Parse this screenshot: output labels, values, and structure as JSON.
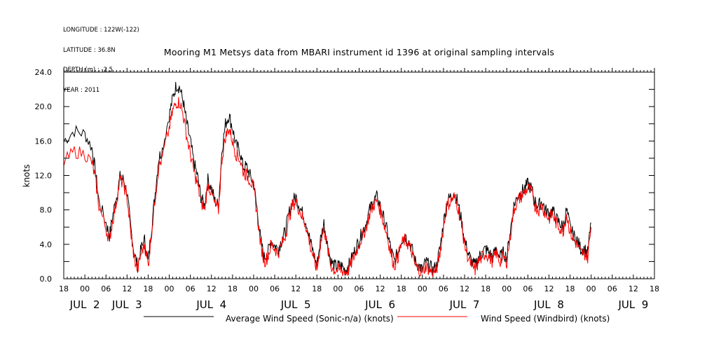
{
  "header": {
    "longitude": "LONGITUDE : 122W(-122)",
    "latitude": "LATITUDE : 36.8N",
    "depth": "DEPTH (m) : -2.5",
    "year": "YEAR : 2011"
  },
  "chart_data": {
    "type": "line",
    "title": "Mooring M1 Metsys data from MBARI instrument id 1396 at original sampling intervals",
    "ylabel": "knots",
    "xlabel": "",
    "ylim": [
      0,
      24
    ],
    "y_ticks": [
      "0.0",
      "4.0",
      "8.0",
      "12.0",
      "16.0",
      "20.0",
      "24.0"
    ],
    "x_range_hours": [
      0,
      168
    ],
    "x_tick_labels": [
      "18",
      "00",
      "06",
      "12",
      "18",
      "00",
      "06",
      "12",
      "18",
      "00",
      "06",
      "12",
      "18",
      "00",
      "06",
      "12",
      "18",
      "00",
      "06",
      "12",
      "18",
      "00",
      "06",
      "12",
      "18",
      "00",
      "06",
      "12",
      "18"
    ],
    "day_labels": [
      {
        "label": "JUL  2",
        "hour": 6
      },
      {
        "label": "JUL  3",
        "hour": 18
      },
      {
        "label": "JUL  4",
        "hour": 42
      },
      {
        "label": "JUL  5",
        "hour": 66
      },
      {
        "label": "JUL  6",
        "hour": 90
      },
      {
        "label": "JUL  7",
        "hour": 114
      },
      {
        "label": "JUL  8",
        "hour": 138
      },
      {
        "label": "JUL  9",
        "hour": 162
      }
    ],
    "grid": false,
    "series": [
      {
        "name": "Average Wind Speed (Sonic-n/a) (knots)",
        "color": "#000000",
        "points": [
          [
            0,
            16.0
          ],
          [
            3,
            17.2
          ],
          [
            6,
            16.8
          ],
          [
            8,
            15.2
          ],
          [
            9,
            12.5
          ],
          [
            10,
            9.0
          ],
          [
            12,
            6.5
          ],
          [
            13,
            5.0
          ],
          [
            14,
            7.5
          ],
          [
            15,
            9.5
          ],
          [
            16,
            11.8
          ],
          [
            17,
            11.5
          ],
          [
            18,
            10.0
          ],
          [
            19,
            6.0
          ],
          [
            20,
            3.0
          ],
          [
            21,
            1.5
          ],
          [
            22,
            3.5
          ],
          [
            23,
            4.5
          ],
          [
            24,
            2.0
          ],
          [
            25,
            6.0
          ],
          [
            26,
            10.0
          ],
          [
            27,
            14.0
          ],
          [
            28,
            15.0
          ],
          [
            30,
            19.0
          ],
          [
            31,
            21.0
          ],
          [
            32,
            22.5
          ],
          [
            33,
            22.2
          ],
          [
            34,
            20.5
          ],
          [
            35,
            18.0
          ],
          [
            36,
            16.0
          ],
          [
            37,
            13.5
          ],
          [
            38,
            12.0
          ],
          [
            39,
            9.5
          ],
          [
            40,
            8.5
          ],
          [
            41,
            11.5
          ],
          [
            42,
            10.5
          ],
          [
            43,
            9.0
          ],
          [
            44,
            8.5
          ],
          [
            45,
            15.0
          ],
          [
            46,
            18.0
          ],
          [
            47,
            19.0
          ],
          [
            48,
            17.5
          ],
          [
            49,
            15.5
          ],
          [
            50,
            15.0
          ],
          [
            51,
            13.0
          ],
          [
            52,
            13.0
          ],
          [
            53,
            12.0
          ],
          [
            54,
            11.0
          ],
          [
            55,
            8.0
          ],
          [
            56,
            4.5
          ],
          [
            57,
            2.5
          ],
          [
            58,
            3.0
          ],
          [
            59,
            4.5
          ],
          [
            60,
            3.8
          ],
          [
            61,
            3.5
          ],
          [
            62,
            4.5
          ],
          [
            63,
            5.5
          ],
          [
            64,
            7.5
          ],
          [
            65,
            9.0
          ],
          [
            66,
            9.5
          ],
          [
            67,
            8.5
          ],
          [
            68,
            7.5
          ],
          [
            69,
            6.5
          ],
          [
            70,
            4.5
          ],
          [
            71,
            3.0
          ],
          [
            72,
            1.5
          ],
          [
            73,
            4.5
          ],
          [
            74,
            6.5
          ],
          [
            75,
            4.0
          ],
          [
            76,
            2.0
          ],
          [
            77,
            1.5
          ],
          [
            78,
            1.5
          ],
          [
            79,
            1.5
          ],
          [
            80,
            1.0
          ],
          [
            81,
            1.5
          ],
          [
            82,
            2.5
          ],
          [
            83,
            3.5
          ],
          [
            84,
            4.5
          ],
          [
            85,
            5.5
          ],
          [
            86,
            6.5
          ],
          [
            87,
            8.0
          ],
          [
            88,
            9.0
          ],
          [
            89,
            9.5
          ],
          [
            90,
            8.5
          ],
          [
            91,
            7.0
          ],
          [
            92,
            5.5
          ],
          [
            93,
            3.5
          ],
          [
            94,
            2.0
          ],
          [
            95,
            3.0
          ],
          [
            96,
            4.5
          ],
          [
            97,
            5.0
          ],
          [
            98,
            4.5
          ],
          [
            99,
            3.5
          ],
          [
            100,
            2.0
          ],
          [
            101,
            1.5
          ],
          [
            102,
            1.0
          ],
          [
            103,
            2.0
          ],
          [
            104,
            1.5
          ],
          [
            105,
            1.0
          ],
          [
            106,
            1.5
          ],
          [
            107,
            3.5
          ],
          [
            108,
            6.5
          ],
          [
            109,
            9.0
          ],
          [
            110,
            9.5
          ],
          [
            111,
            10.0
          ],
          [
            112,
            9.0
          ],
          [
            113,
            7.0
          ],
          [
            114,
            4.5
          ],
          [
            115,
            3.0
          ],
          [
            116,
            2.0
          ],
          [
            117,
            1.5
          ],
          [
            118,
            2.5
          ],
          [
            119,
            3.0
          ],
          [
            120,
            3.5
          ],
          [
            121,
            3.0
          ],
          [
            122,
            2.5
          ],
          [
            123,
            3.5
          ],
          [
            124,
            2.5
          ],
          [
            125,
            3.0
          ],
          [
            126,
            2.5
          ],
          [
            127,
            5.5
          ],
          [
            128,
            8.5
          ],
          [
            129,
            9.5
          ],
          [
            130,
            10.0
          ],
          [
            131,
            10.5
          ],
          [
            132,
            11.0
          ],
          [
            133,
            10.5
          ],
          [
            134,
            9.0
          ],
          [
            135,
            8.5
          ],
          [
            136,
            9.0
          ],
          [
            137,
            8.0
          ],
          [
            138,
            7.5
          ],
          [
            139,
            8.0
          ],
          [
            140,
            7.0
          ],
          [
            141,
            6.5
          ],
          [
            142,
            6.0
          ],
          [
            143,
            8.0
          ],
          [
            144,
            6.0
          ],
          [
            145,
            5.0
          ],
          [
            146,
            4.5
          ],
          [
            147,
            3.5
          ],
          [
            148,
            3.5
          ],
          [
            149,
            3.0
          ],
          [
            150,
            6.5
          ]
        ]
      },
      {
        "name": "Wind Speed (Windbird) (knots)",
        "color": "#ff0000",
        "points": [
          [
            0,
            13.5
          ],
          [
            3,
            14.8
          ],
          [
            6,
            14.5
          ],
          [
            8,
            13.5
          ],
          [
            9,
            11.5
          ],
          [
            10,
            8.5
          ],
          [
            12,
            5.8
          ],
          [
            13,
            4.5
          ],
          [
            14,
            7.0
          ],
          [
            15,
            9.0
          ],
          [
            16,
            11.5
          ],
          [
            17,
            11.0
          ],
          [
            18,
            9.5
          ],
          [
            19,
            5.5
          ],
          [
            20,
            2.5
          ],
          [
            21,
            1.0
          ],
          [
            22,
            3.0
          ],
          [
            23,
            4.0
          ],
          [
            24,
            1.5
          ],
          [
            25,
            5.5
          ],
          [
            26,
            9.5
          ],
          [
            27,
            13.0
          ],
          [
            28,
            14.0
          ],
          [
            30,
            17.5
          ],
          [
            31,
            19.5
          ],
          [
            32,
            20.5
          ],
          [
            33,
            20.5
          ],
          [
            34,
            19.0
          ],
          [
            35,
            16.5
          ],
          [
            36,
            14.5
          ],
          [
            37,
            12.5
          ],
          [
            38,
            11.0
          ],
          [
            39,
            9.0
          ],
          [
            40,
            8.0
          ],
          [
            41,
            11.0
          ],
          [
            42,
            10.0
          ],
          [
            43,
            8.5
          ],
          [
            44,
            8.0
          ],
          [
            45,
            14.0
          ],
          [
            46,
            16.5
          ],
          [
            47,
            17.5
          ],
          [
            48,
            16.0
          ],
          [
            49,
            14.5
          ],
          [
            50,
            14.0
          ],
          [
            51,
            12.5
          ],
          [
            52,
            12.0
          ],
          [
            53,
            11.5
          ],
          [
            54,
            10.5
          ],
          [
            55,
            7.5
          ],
          [
            56,
            4.0
          ],
          [
            57,
            2.0
          ],
          [
            58,
            2.5
          ],
          [
            59,
            4.0
          ],
          [
            60,
            3.5
          ],
          [
            61,
            3.0
          ],
          [
            62,
            4.0
          ],
          [
            63,
            5.0
          ],
          [
            64,
            7.0
          ],
          [
            65,
            8.5
          ],
          [
            66,
            9.0
          ],
          [
            67,
            8.0
          ],
          [
            68,
            7.0
          ],
          [
            69,
            6.0
          ],
          [
            70,
            4.0
          ],
          [
            71,
            2.5
          ],
          [
            72,
            1.0
          ],
          [
            73,
            4.0
          ],
          [
            74,
            6.0
          ],
          [
            75,
            3.5
          ],
          [
            76,
            1.5
          ],
          [
            77,
            1.0
          ],
          [
            78,
            1.0
          ],
          [
            79,
            1.0
          ],
          [
            80,
            0.8
          ],
          [
            81,
            1.0
          ],
          [
            82,
            2.0
          ],
          [
            83,
            3.0
          ],
          [
            84,
            4.0
          ],
          [
            85,
            5.0
          ],
          [
            86,
            6.0
          ],
          [
            87,
            7.5
          ],
          [
            88,
            8.5
          ],
          [
            89,
            9.0
          ],
          [
            90,
            8.0
          ],
          [
            91,
            6.5
          ],
          [
            92,
            5.0
          ],
          [
            93,
            3.0
          ],
          [
            94,
            1.5
          ],
          [
            95,
            2.5
          ],
          [
            96,
            4.0
          ],
          [
            97,
            4.5
          ],
          [
            98,
            4.0
          ],
          [
            99,
            3.0
          ],
          [
            100,
            1.5
          ],
          [
            101,
            1.0
          ],
          [
            102,
            0.8
          ],
          [
            103,
            1.5
          ],
          [
            104,
            1.0
          ],
          [
            105,
            0.8
          ],
          [
            106,
            1.0
          ],
          [
            107,
            3.0
          ],
          [
            108,
            6.0
          ],
          [
            109,
            8.5
          ],
          [
            110,
            9.0
          ],
          [
            111,
            9.5
          ],
          [
            112,
            8.5
          ],
          [
            113,
            6.5
          ],
          [
            114,
            4.0
          ],
          [
            115,
            2.5
          ],
          [
            116,
            1.5
          ],
          [
            117,
            1.0
          ],
          [
            118,
            2.0
          ],
          [
            119,
            2.5
          ],
          [
            120,
            3.0
          ],
          [
            121,
            2.5
          ],
          [
            122,
            2.0
          ],
          [
            123,
            3.0
          ],
          [
            124,
            2.0
          ],
          [
            125,
            2.5
          ],
          [
            126,
            2.0
          ],
          [
            127,
            5.0
          ],
          [
            128,
            8.0
          ],
          [
            129,
            9.0
          ],
          [
            130,
            9.5
          ],
          [
            131,
            10.0
          ],
          [
            132,
            10.5
          ],
          [
            133,
            10.0
          ],
          [
            134,
            8.5
          ],
          [
            135,
            8.0
          ],
          [
            136,
            8.5
          ],
          [
            137,
            7.5
          ],
          [
            138,
            7.0
          ],
          [
            139,
            7.5
          ],
          [
            140,
            6.5
          ],
          [
            141,
            6.0
          ],
          [
            142,
            5.5
          ],
          [
            143,
            7.5
          ],
          [
            144,
            5.5
          ],
          [
            145,
            4.5
          ],
          [
            146,
            4.0
          ],
          [
            147,
            3.0
          ],
          [
            148,
            3.0
          ],
          [
            149,
            2.5
          ],
          [
            150,
            6.0
          ]
        ]
      }
    ],
    "legend": {
      "placement": "bottom",
      "items": [
        {
          "label": "Average Wind Speed (Sonic-n/a) (knots)",
          "color": "#000000"
        },
        {
          "label": "Wind Speed (Windbird) (knots)",
          "color": "#ff0000"
        }
      ]
    }
  }
}
